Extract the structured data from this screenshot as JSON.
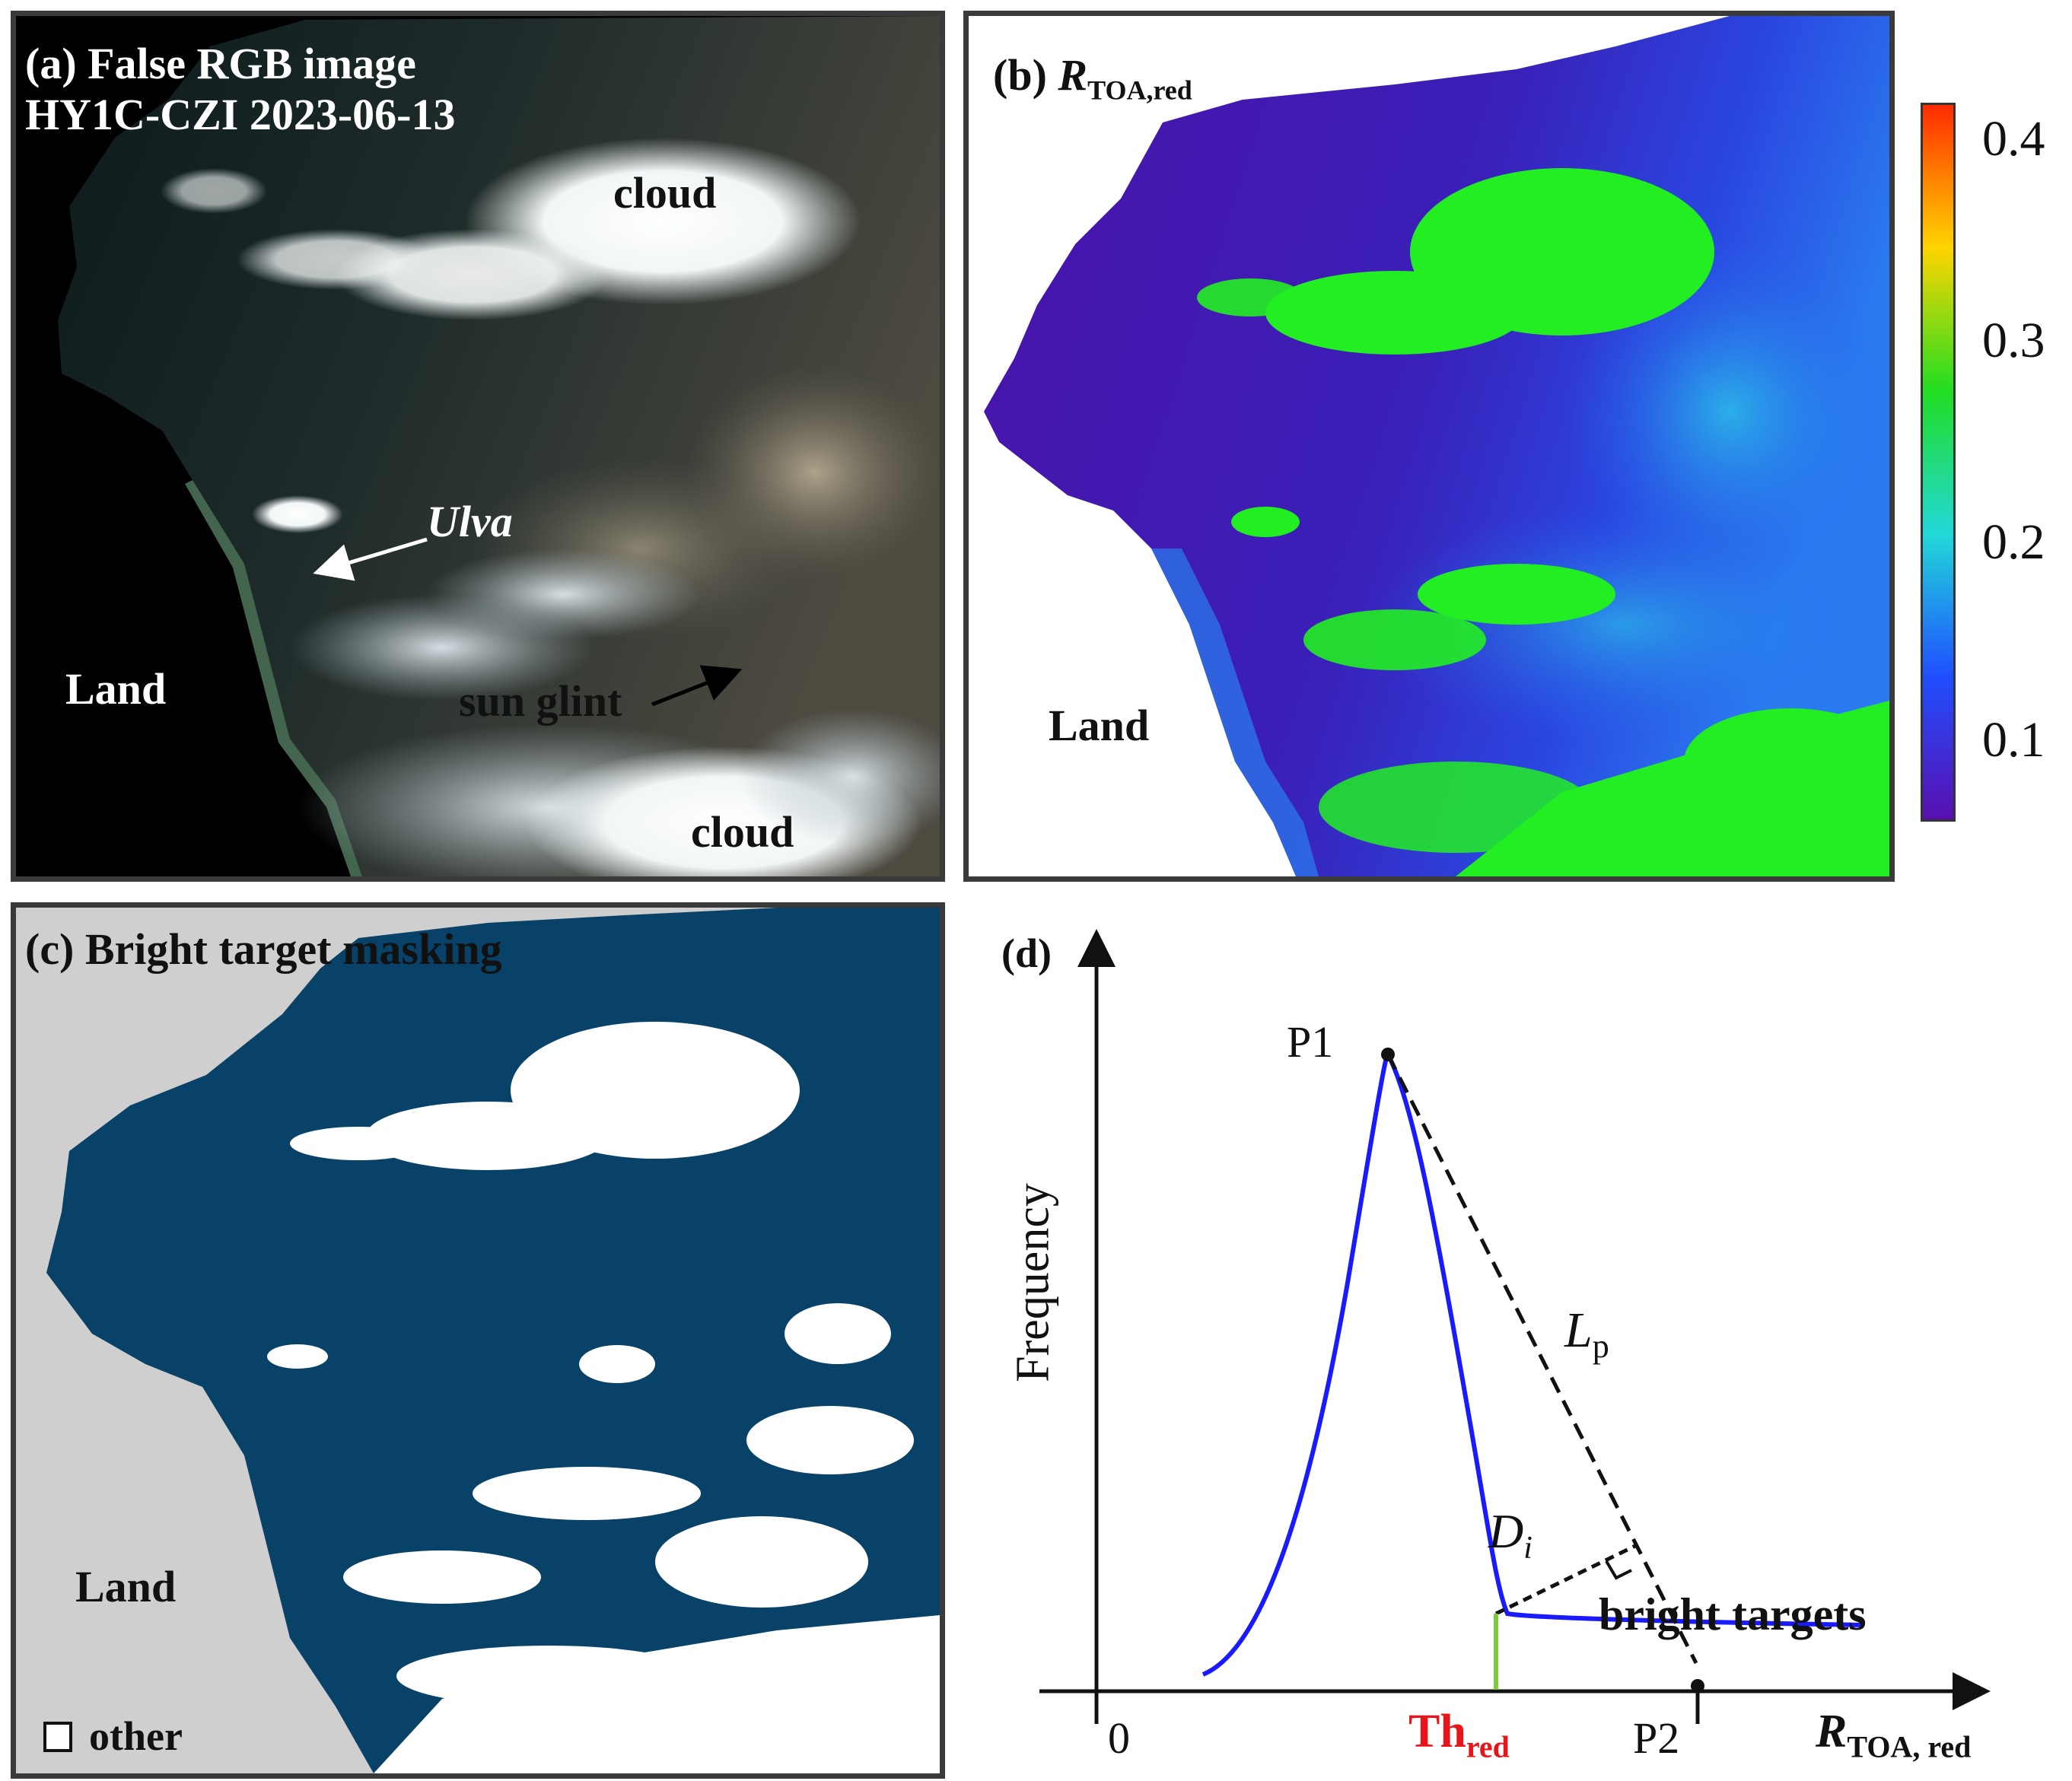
{
  "panel_a": {
    "title_line1": "(a) False RGB image",
    "title_line2": "HY1C-CZI 2023-06-13",
    "label_cloud_top": "cloud",
    "label_cloud_bottom": "cloud",
    "label_ulva": "Ulva",
    "label_sun_glint": "sun glint",
    "label_land": "Land"
  },
  "panel_b": {
    "title_prefix": "(b) ",
    "title_symbol": "R",
    "title_subscript": "TOA,red",
    "label_land": "Land",
    "colorbar": {
      "ticks": [
        "0.4",
        "0.3",
        "0.2",
        "0.1"
      ],
      "colors": [
        "#ff2a00",
        "#ffd400",
        "#22dd22",
        "#22d8d8",
        "#1f4fff",
        "#5a0fb0"
      ]
    }
  },
  "panel_c": {
    "title_line1": "(c) Bright target masking",
    "title_line2": "masking",
    "label_land": "Land",
    "legend_label": "other",
    "colors": {
      "land": "#cfcfcf",
      "water": "#084268",
      "other": "#ffffff"
    }
  },
  "panel_d": {
    "title": "(d)",
    "ylabel": "Frequency",
    "origin_label": "0",
    "p1_label": "P1",
    "p2_label": "P2",
    "lp_symbol": "L",
    "lp_subscript": "p",
    "di_symbol": "D",
    "di_subscript": "i",
    "bright_targets_label": "bright targets",
    "th_symbol": "Th",
    "th_subscript": "red",
    "xlabel_symbol": "R",
    "xlabel_subscript": "TOA, red",
    "colors": {
      "curve": "#1a1aff",
      "threshold_text": "#e8141a",
      "threshold_line": "#7ccc3a",
      "axis": "#111111"
    }
  }
}
